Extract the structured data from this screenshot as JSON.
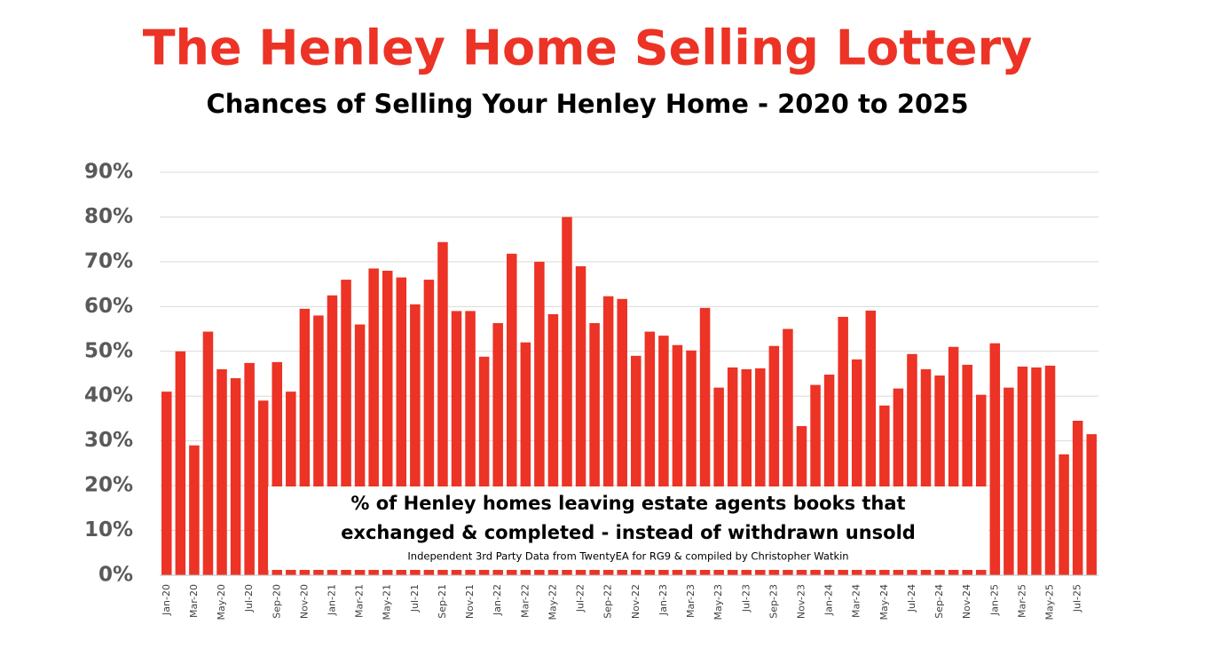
{
  "chart_data": {
    "type": "bar",
    "title": "The Henley Home Selling Lottery",
    "subtitle": "Chances of Selling Your Henley Home - 2020 to 2025",
    "annotations": [
      "% of Henley homes leaving estate agents books that",
      "exchanged & completed - instead of withdrawn unsold",
      "Independent 3rd Party Data from TwentyEA for RG9 & compiled by Christopher Watkin"
    ],
    "categories": [
      "Jan-20",
      null,
      "Mar-20",
      null,
      "May-20",
      null,
      "Jul-20",
      null,
      "Sep-20",
      null,
      "Nov-20",
      null,
      "Jan-21",
      null,
      "Mar-21",
      null,
      "May-21",
      null,
      "Jul-21",
      null,
      "Sep-21",
      null,
      "Nov-21",
      null,
      "Jan-22",
      null,
      "Mar-22",
      null,
      "May-22",
      null,
      "Jul-22",
      null,
      "Sep-22",
      null,
      "Nov-22",
      null,
      "Jan-23",
      null,
      "Mar-23",
      null,
      "May-23",
      null,
      "Jul-23",
      null,
      "Sep-23",
      null,
      "Nov-23",
      null,
      "Jan-24",
      null,
      "Mar-24",
      null,
      "May-24",
      null,
      "Jul-24",
      null,
      "Sep-24",
      null,
      "Nov-24",
      null,
      "Jan-25",
      null,
      "Mar-25",
      null,
      "May-25",
      null,
      "Jul-25",
      null
    ],
    "values": [
      41,
      50,
      29,
      54.4,
      46,
      44,
      47.4,
      39,
      47.6,
      41,
      59.5,
      58,
      62.5,
      66,
      56,
      68.5,
      68,
      66.5,
      60.5,
      66,
      74.4,
      59,
      59,
      48.8,
      56.3,
      71.8,
      52,
      70,
      58.3,
      80,
      69,
      56.3,
      62.3,
      61.7,
      49,
      54.4,
      53.5,
      51.4,
      50.2,
      59.7,
      41.9,
      46.4,
      46,
      46.2,
      51.2,
      55,
      33.3,
      42.5,
      44.8,
      57.7,
      48.2,
      59.1,
      37.9,
      41.7,
      49.4,
      46,
      44.6,
      51,
      47,
      40.3,
      51.8,
      41.9,
      46.6,
      46.4,
      46.8,
      27,
      34.5,
      31.5
    ],
    "color": "#ec3325",
    "ylim": [
      0,
      90
    ],
    "yticks": [
      {
        "value": 0,
        "label": "0%"
      },
      {
        "value": 10,
        "label": "10%"
      },
      {
        "value": 20,
        "label": "20%"
      },
      {
        "value": 30,
        "label": "30%"
      },
      {
        "value": 40,
        "label": "40%"
      },
      {
        "value": 50,
        "label": "50%"
      },
      {
        "value": 60,
        "label": "60%"
      },
      {
        "value": 70,
        "label": "70%"
      },
      {
        "value": 80,
        "label": "80%"
      },
      {
        "value": 90,
        "label": "90%"
      }
    ],
    "grid": true
  }
}
